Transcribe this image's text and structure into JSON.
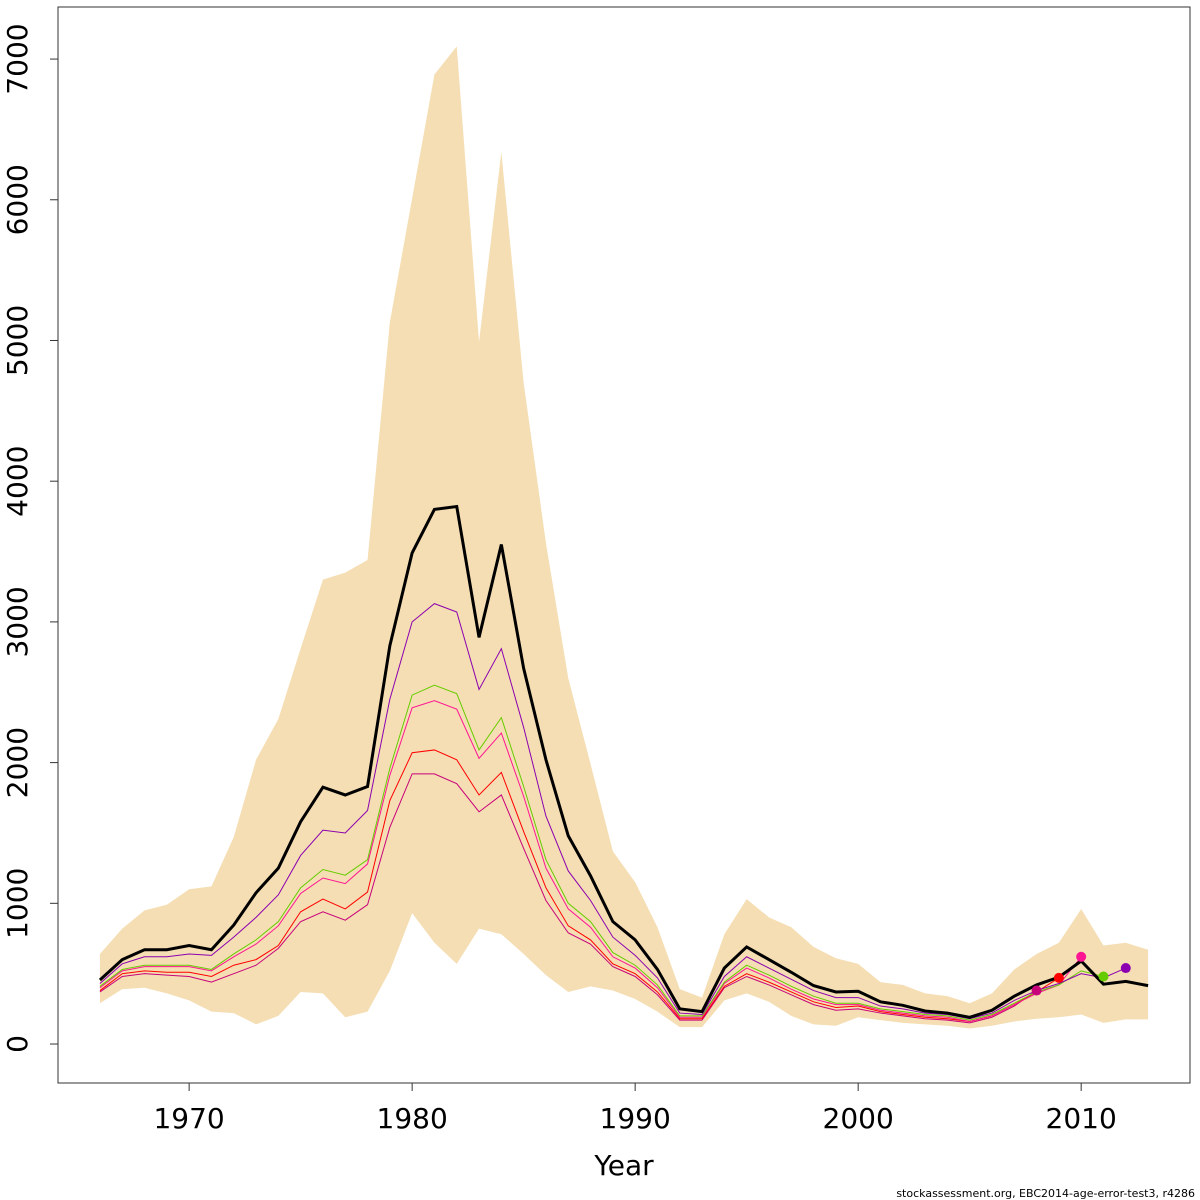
{
  "chart_data": {
    "type": "line",
    "x_label": "Year",
    "footnote": "stockassessment.org, EBC2014-age-error-test3, r4286",
    "x": [
      1966,
      1967,
      1968,
      1969,
      1970,
      1971,
      1972,
      1973,
      1974,
      1975,
      1976,
      1977,
      1978,
      1979,
      1980,
      1981,
      1982,
      1983,
      1984,
      1985,
      1986,
      1987,
      1988,
      1989,
      1990,
      1991,
      1992,
      1993,
      1994,
      1995,
      1996,
      1997,
      1998,
      1999,
      2000,
      2001,
      2002,
      2003,
      2004,
      2005,
      2006,
      2007,
      2008,
      2009,
      2010,
      2011,
      2012,
      2013
    ],
    "xlim": [
      1964.12,
      2014.88
    ],
    "xticks": [
      1970,
      1980,
      1990,
      2000,
      2010
    ],
    "ylim": [
      -277,
      7370
    ],
    "yticks": [
      0,
      1000,
      2000,
      3000,
      4000,
      5000,
      6000,
      7000
    ],
    "band": {
      "color": "#f5deb3",
      "upper": [
        640,
        820,
        950,
        990,
        1100,
        1120,
        1470,
        2020,
        2310,
        2810,
        3300,
        3350,
        3440,
        5130,
        6010,
        6890,
        7090,
        4990,
        6340,
        4700,
        3560,
        2600,
        1990,
        1370,
        1150,
        830,
        390,
        330,
        780,
        1030,
        900,
        830,
        690,
        610,
        570,
        440,
        420,
        360,
        340,
        290,
        360,
        530,
        640,
        720,
        960,
        700,
        720,
        670
      ],
      "lower": [
        290,
        390,
        400,
        360,
        310,
        230,
        220,
        140,
        200,
        370,
        360,
        190,
        230,
        520,
        930,
        720,
        570,
        820,
        780,
        640,
        490,
        370,
        410,
        380,
        320,
        230,
        120,
        120,
        310,
        360,
        300,
        200,
        140,
        130,
        190,
        170,
        150,
        140,
        130,
        110,
        130,
        160,
        180,
        190,
        210,
        150,
        175,
        175
      ]
    },
    "series": [
      {
        "color": "#c8007a",
        "values": [
          370,
          480,
          500,
          490,
          480,
          440,
          500,
          560,
          680,
          870,
          940,
          880,
          990,
          1540,
          1920,
          1920,
          1850,
          1650,
          1770,
          1390,
          1020,
          790,
          710,
          550,
          480,
          350,
          170,
          170,
          400,
          480,
          420,
          350,
          280,
          240,
          250,
          220,
          200,
          180,
          170,
          150,
          190,
          270,
          380,
          null,
          null,
          null,
          null,
          null
        ]
      },
      {
        "color": "#ff0000",
        "values": [
          380,
          500,
          520,
          510,
          510,
          480,
          560,
          600,
          700,
          940,
          1030,
          960,
          1080,
          1730,
          2070,
          2090,
          2020,
          1770,
          1930,
          1510,
          1110,
          840,
          740,
          570,
          500,
          370,
          180,
          180,
          410,
          500,
          440,
          370,
          300,
          260,
          270,
          230,
          210,
          190,
          180,
          160,
          200,
          280,
          370,
          470,
          null,
          null,
          null,
          null
        ]
      },
      {
        "color": "#ff1493",
        "values": [
          400,
          520,
          550,
          550,
          550,
          520,
          620,
          710,
          840,
          1070,
          1180,
          1140,
          1280,
          1910,
          2390,
          2440,
          2380,
          2030,
          2210,
          1760,
          1250,
          960,
          830,
          620,
          540,
          400,
          190,
          190,
          430,
          540,
          470,
          390,
          320,
          280,
          280,
          240,
          220,
          200,
          190,
          160,
          200,
          280,
          360,
          420,
          620,
          null,
          null,
          null
        ]
      },
      {
        "color": "#66cc00",
        "values": [
          410,
          530,
          560,
          560,
          560,
          530,
          640,
          740,
          870,
          1110,
          1240,
          1200,
          1310,
          1960,
          2480,
          2550,
          2490,
          2090,
          2320,
          1830,
          1310,
          1000,
          870,
          650,
          560,
          420,
          200,
          200,
          440,
          560,
          490,
          410,
          340,
          290,
          290,
          250,
          230,
          210,
          200,
          170,
          210,
          290,
          370,
          420,
          520,
          480,
          null,
          null
        ]
      },
      {
        "color": "#8b00b0",
        "values": [
          430,
          570,
          620,
          620,
          640,
          630,
          760,
          900,
          1060,
          1340,
          1520,
          1500,
          1660,
          2450,
          3000,
          3130,
          3070,
          2520,
          2810,
          2250,
          1620,
          1230,
          1020,
          760,
          630,
          470,
          220,
          210,
          480,
          620,
          540,
          460,
          380,
          330,
          330,
          270,
          250,
          220,
          210,
          180,
          220,
          310,
          380,
          430,
          500,
          470,
          540,
          null
        ]
      },
      {
        "color": "#000000",
        "values": [
          455,
          600,
          670,
          670,
          700,
          670,
          845,
          1075,
          1250,
          1580,
          1825,
          1770,
          1830,
          2830,
          3490,
          3800,
          3820,
          2890,
          3550,
          2670,
          2020,
          1480,
          1195,
          870,
          740,
          530,
          250,
          230,
          540,
          690,
          600,
          510,
          415,
          370,
          375,
          300,
          275,
          235,
          220,
          190,
          240,
          340,
          420,
          475,
          590,
          425,
          445,
          415
        ]
      }
    ]
  }
}
